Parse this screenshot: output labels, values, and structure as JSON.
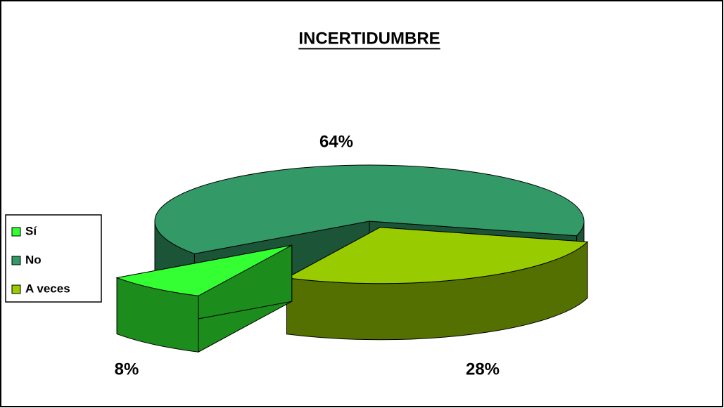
{
  "chart_data": {
    "type": "pie3d",
    "title": "INCERTIDUMBRE",
    "categories": [
      "Sí",
      "No",
      "A veces"
    ],
    "values": [
      8,
      64,
      28
    ],
    "value_labels": [
      "8%",
      "64%",
      "28%"
    ],
    "colors": [
      "#33ff33",
      "#339966",
      "#99cc00"
    ],
    "legend": "left"
  }
}
